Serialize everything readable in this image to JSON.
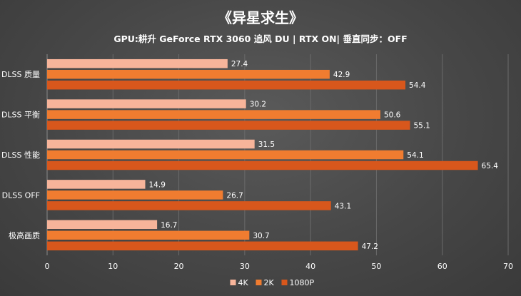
{
  "chart_data": {
    "type": "bar",
    "orientation": "horizontal",
    "title": "《异星求生》",
    "subtitle": "GPU:耕升 GeForce RTX 3060 追风 DU | RTX ON| 垂直同步：OFF",
    "categories": [
      "DLSS 质量",
      "DLSS 平衡",
      "DLSS 性能",
      "DLSS OFF",
      "极高画质"
    ],
    "series": [
      {
        "name": "4K",
        "color": "#f7b49a",
        "values": [
          27.4,
          30.2,
          31.5,
          14.9,
          16.7
        ]
      },
      {
        "name": "2K",
        "color": "#f07c30",
        "values": [
          42.9,
          50.6,
          54.1,
          26.7,
          30.7
        ]
      },
      {
        "name": "1080P",
        "color": "#d8571c",
        "values": [
          54.4,
          55.1,
          65.4,
          43.1,
          47.2
        ]
      }
    ],
    "xlim": [
      0,
      70
    ],
    "xticks": [
      0,
      10,
      20,
      30,
      40,
      50,
      60,
      70
    ],
    "grid": true,
    "legend_position": "bottom"
  }
}
